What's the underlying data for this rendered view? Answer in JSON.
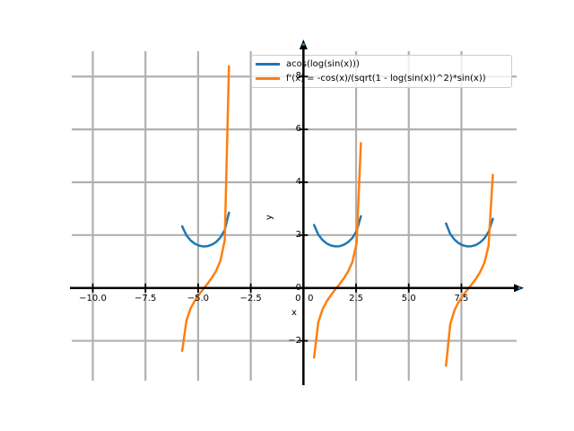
{
  "window": {
    "background": "#ffffff"
  },
  "chart_data": {
    "type": "line",
    "title": "",
    "xlabel": "x",
    "ylabel": "y",
    "xlim": [
      -11.0,
      10.12
    ],
    "ylim": [
      -3.51,
      8.96
    ],
    "grid": true,
    "legend_position": "upper right",
    "colors": {
      "grid": "#b0b0b0",
      "axis": "#000000",
      "arrow_marker": "#1f77b4",
      "legend_border": "#cccccc",
      "legend_bg": "rgba(255,255,255,0.8)"
    },
    "x_sampling": {
      "min": -10,
      "max": 10,
      "points": 100
    },
    "xticks": [
      {
        "value": -10,
        "label": "−10.0"
      },
      {
        "value": -7.5,
        "label": "−7.5"
      },
      {
        "value": -5,
        "label": "−5.0"
      },
      {
        "value": -2.5,
        "label": "−2.5"
      },
      {
        "value": 0,
        "label": ""
      },
      {
        "value": 2.5,
        "label": "2.5"
      },
      {
        "value": 5,
        "label": "5.0"
      },
      {
        "value": 7.5,
        "label": "7.5"
      }
    ],
    "yticks": [
      {
        "value": -2,
        "label": "−2"
      },
      {
        "value": 0,
        "label": "0"
      },
      {
        "value": 2,
        "label": "2"
      },
      {
        "value": 4,
        "label": "4"
      },
      {
        "value": 6,
        "label": "6"
      },
      {
        "value": 8,
        "label": "8"
      }
    ],
    "origin_x_labels": [
      "0",
      "0"
    ],
    "series": [
      {
        "name": "acos(log(sin(x)))",
        "color": "#1f77b4",
        "js_expr": "Math.acos(Math.log(Math.sin(x)))",
        "visible_branches_x": [
          [
            -5.758,
            -3.535
          ],
          [
            0.505,
            2.727
          ],
          [
            6.768,
            8.99
          ]
        ],
        "value_range_sampled": [
          1.571,
          2.85
        ]
      },
      {
        "name": "f'(x) = -cos(x)/(sqrt(1 - log(sin(x))^2)*sin(x))",
        "color": "#ff7f0e",
        "js_expr": "-Math.cos(x)/(Math.sqrt(1-Math.pow(Math.log(Math.sin(x)),2))*Math.sin(x))",
        "visible_branches_x": [
          [
            -5.758,
            -3.535
          ],
          [
            0.505,
            2.727
          ],
          [
            6.768,
            8.99
          ]
        ],
        "value_range_sampled": [
          -2.94,
          8.39
        ]
      }
    ]
  }
}
